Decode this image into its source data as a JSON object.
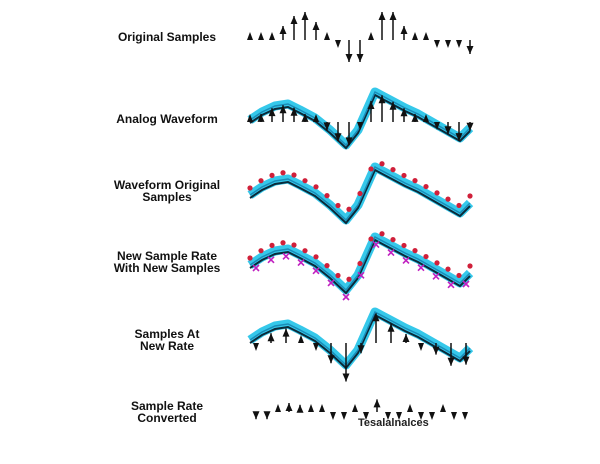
{
  "rows": [
    {
      "label": [
        "Original Samples"
      ]
    },
    {
      "label": [
        "Analog Waveform"
      ]
    },
    {
      "label": [
        "Waveform Original",
        "Samples"
      ]
    },
    {
      "label": [
        "New Sample Rate",
        "With New Samples"
      ]
    },
    {
      "label": [
        "Samples At",
        "New Rate"
      ]
    },
    {
      "label": [
        "Sample Rate",
        "Converted"
      ]
    }
  ],
  "annotation": "Tesalalnalces"
}
